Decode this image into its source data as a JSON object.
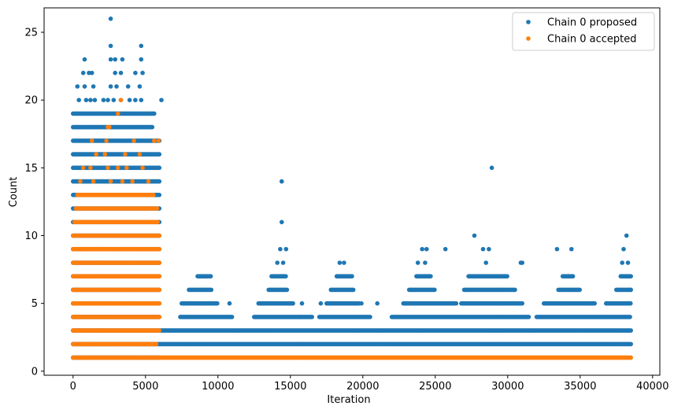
{
  "chart_data": {
    "type": "scatter",
    "xlabel": "Iteration",
    "ylabel": "Count",
    "xlim": [
      -2000,
      40500
    ],
    "ylim": [
      -0.3,
      26.8
    ],
    "x_ticks": [
      0,
      5000,
      10000,
      15000,
      20000,
      25000,
      30000,
      35000,
      40000
    ],
    "x_tick_labels": [
      "0",
      "5000",
      "10000",
      "15000",
      "20000",
      "25000",
      "30000",
      "35000",
      "40000"
    ],
    "y_ticks": [
      0,
      5,
      10,
      15,
      20,
      25
    ],
    "y_tick_labels": [
      "0",
      "5",
      "10",
      "15",
      "20",
      "25"
    ],
    "grid": false,
    "legend": {
      "position": "top-right"
    },
    "series": [
      {
        "name": "Chain 0 proposed",
        "color": "#1f77b4",
        "bands": [
          {
            "y": 1,
            "x": [
              [
                0,
                6000
              ]
            ]
          },
          {
            "y": 2,
            "x": [
              [
                0,
                38500
              ]
            ]
          },
          {
            "y": 3,
            "x": [
              [
                0,
                38500
              ]
            ]
          },
          {
            "y": 4,
            "x": [
              [
                0,
                6000
              ],
              [
                7400,
                11000
              ],
              [
                12500,
                16500
              ],
              [
                17000,
                20500
              ],
              [
                22000,
                31500
              ],
              [
                32000,
                38500
              ]
            ]
          },
          {
            "y": 5,
            "x": [
              [
                0,
                6000
              ],
              [
                7500,
                10000
              ],
              [
                12800,
                15200
              ],
              [
                17500,
                19800
              ],
              [
                22800,
                26500
              ],
              [
                26800,
                31000
              ],
              [
                32500,
                36000
              ],
              [
                36800,
                38500
              ]
            ]
          },
          {
            "y": 6,
            "x": [
              [
                0,
                6000
              ],
              [
                8000,
                9600
              ],
              [
                13500,
                14800
              ],
              [
                17800,
                19400
              ],
              [
                23200,
                25000
              ],
              [
                27000,
                30500
              ],
              [
                33500,
                35000
              ],
              [
                37500,
                38500
              ]
            ]
          },
          {
            "y": 7,
            "x": [
              [
                0,
                6000
              ],
              [
                8600,
                9500
              ],
              [
                13700,
                14700
              ],
              [
                18200,
                19300
              ],
              [
                23700,
                24700
              ],
              [
                27300,
                30000
              ],
              [
                33800,
                34500
              ],
              [
                37800,
                38500
              ]
            ]
          },
          {
            "y": 8,
            "x": [
              [
                0,
                6000
              ]
            ]
          },
          {
            "y": 9,
            "x": [
              [
                0,
                6000
              ]
            ]
          },
          {
            "y": 10,
            "x": [
              [
                0,
                6000
              ]
            ]
          },
          {
            "y": 11,
            "x": [
              [
                0,
                6000
              ]
            ]
          },
          {
            "y": 12,
            "x": [
              [
                0,
                6000
              ]
            ]
          },
          {
            "y": 13,
            "x": [
              [
                0,
                6000
              ]
            ]
          },
          {
            "y": 14,
            "x": [
              [
                0,
                6000
              ]
            ]
          },
          {
            "y": 15,
            "x": [
              [
                0,
                6000
              ]
            ]
          },
          {
            "y": 16,
            "x": [
              [
                0,
                6000
              ]
            ]
          },
          {
            "y": 17,
            "x": [
              [
                0,
                6000
              ]
            ]
          },
          {
            "y": 18,
            "x": [
              [
                0,
                5500
              ]
            ]
          },
          {
            "y": 19,
            "x": [
              [
                0,
                5600
              ]
            ]
          }
        ],
        "points": [
          [
            400,
            20
          ],
          [
            900,
            20
          ],
          [
            1200,
            20
          ],
          [
            1500,
            20
          ],
          [
            2100,
            20
          ],
          [
            2400,
            20
          ],
          [
            2800,
            20
          ],
          [
            3300,
            20
          ],
          [
            3900,
            20
          ],
          [
            4300,
            20
          ],
          [
            4700,
            20
          ],
          [
            6100,
            20
          ],
          [
            300,
            21
          ],
          [
            800,
            21
          ],
          [
            1400,
            21
          ],
          [
            2600,
            21
          ],
          [
            3000,
            21
          ],
          [
            3800,
            21
          ],
          [
            4600,
            21
          ],
          [
            700,
            22
          ],
          [
            1100,
            22
          ],
          [
            1300,
            22
          ],
          [
            2900,
            22
          ],
          [
            3300,
            22
          ],
          [
            4300,
            22
          ],
          [
            4800,
            22
          ],
          [
            800,
            23
          ],
          [
            2600,
            23
          ],
          [
            2900,
            23
          ],
          [
            3400,
            23
          ],
          [
            4700,
            23
          ],
          [
            2600,
            24
          ],
          [
            4700,
            24
          ],
          [
            2600,
            26
          ],
          [
            8800,
            7
          ],
          [
            9100,
            7
          ],
          [
            9500,
            7
          ],
          [
            10800,
            5
          ],
          [
            15800,
            5
          ],
          [
            17100,
            5
          ],
          [
            19900,
            5
          ],
          [
            21000,
            5
          ],
          [
            14100,
            8
          ],
          [
            14300,
            9
          ],
          [
            14500,
            8
          ],
          [
            14700,
            9
          ],
          [
            14400,
            11
          ],
          [
            14400,
            14
          ],
          [
            18400,
            8
          ],
          [
            18700,
            8
          ],
          [
            23800,
            8
          ],
          [
            24100,
            9
          ],
          [
            24400,
            9
          ],
          [
            24300,
            8
          ],
          [
            25700,
            9
          ],
          [
            27700,
            10
          ],
          [
            28300,
            9
          ],
          [
            28700,
            9
          ],
          [
            28500,
            8
          ],
          [
            28900,
            15
          ],
          [
            30900,
            8
          ],
          [
            31000,
            8
          ],
          [
            33400,
            9
          ],
          [
            34200,
            7
          ],
          [
            34400,
            9
          ],
          [
            36800,
            5
          ],
          [
            38000,
            9
          ],
          [
            38200,
            10
          ],
          [
            37900,
            8
          ],
          [
            38300,
            8
          ],
          [
            38500,
            6
          ],
          [
            38400,
            7
          ]
        ]
      },
      {
        "name": "Chain 0 accepted",
        "color": "#ff7f0e",
        "bands": [
          {
            "y": 1,
            "x": [
              [
                0,
                38500
              ]
            ]
          },
          {
            "y": 2,
            "x": [
              [
                0,
                5800
              ]
            ]
          },
          {
            "y": 3,
            "x": [
              [
                0,
                6000
              ]
            ]
          },
          {
            "y": 4,
            "x": [
              [
                0,
                6000
              ]
            ]
          },
          {
            "y": 5,
            "x": [
              [
                0,
                6000
              ]
            ]
          },
          {
            "y": 6,
            "x": [
              [
                0,
                6000
              ]
            ]
          },
          {
            "y": 7,
            "x": [
              [
                0,
                6000
              ]
            ]
          },
          {
            "y": 8,
            "x": [
              [
                0,
                6000
              ]
            ]
          },
          {
            "y": 9,
            "x": [
              [
                0,
                6000
              ]
            ]
          },
          {
            "y": 10,
            "x": [
              [
                0,
                6000
              ]
            ]
          },
          {
            "y": 11,
            "x": [
              [
                100,
                5900
              ]
            ]
          },
          {
            "y": 12,
            "x": [
              [
                200,
                5800
              ]
            ]
          },
          {
            "y": 13,
            "x": [
              [
                300,
                5600
              ]
            ]
          }
        ],
        "points": [
          [
            500,
            14
          ],
          [
            1400,
            14
          ],
          [
            2600,
            14
          ],
          [
            3400,
            14
          ],
          [
            4100,
            14
          ],
          [
            5200,
            14
          ],
          [
            700,
            15
          ],
          [
            1200,
            15
          ],
          [
            2400,
            15
          ],
          [
            3100,
            15
          ],
          [
            3700,
            15
          ],
          [
            4800,
            15
          ],
          [
            1600,
            16
          ],
          [
            2200,
            16
          ],
          [
            3600,
            16
          ],
          [
            4600,
            16
          ],
          [
            1300,
            17
          ],
          [
            2300,
            17
          ],
          [
            4200,
            17
          ],
          [
            5600,
            17
          ],
          [
            5900,
            17
          ],
          [
            2400,
            18
          ],
          [
            2500,
            18
          ],
          [
            3100,
            19
          ],
          [
            3300,
            20
          ]
        ]
      }
    ]
  }
}
